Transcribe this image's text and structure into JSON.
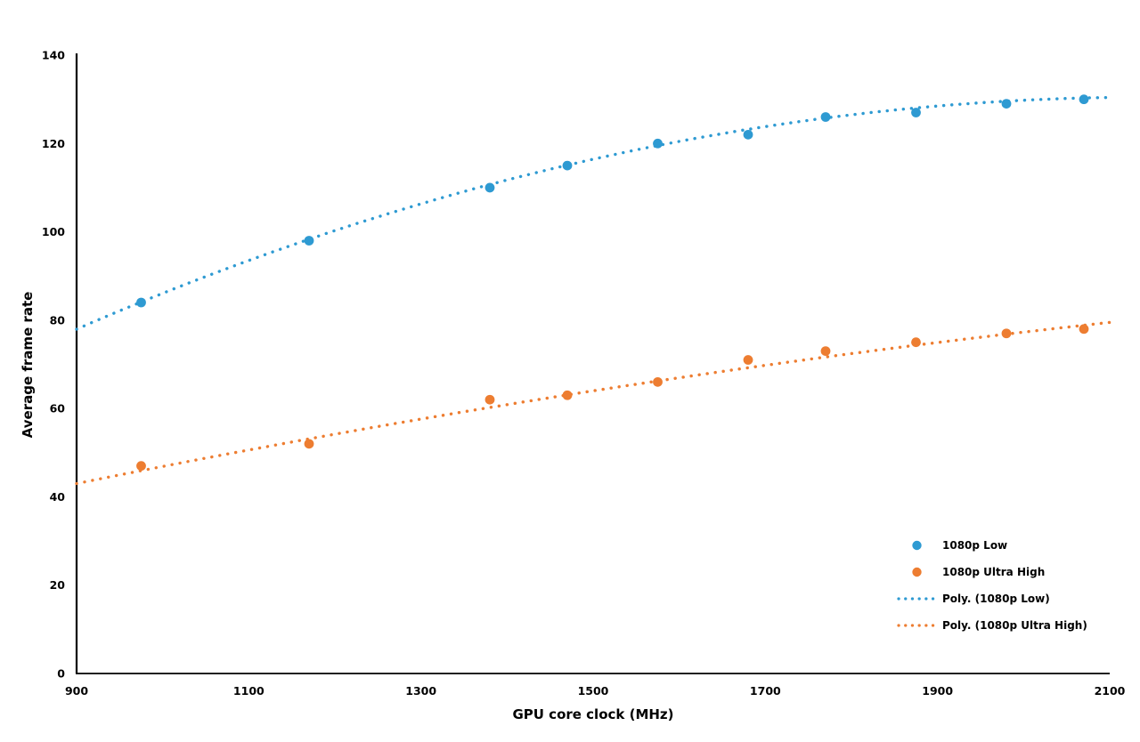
{
  "chart_data": {
    "type": "scatter",
    "title": "",
    "xlabel": "GPU core clock (MHz)",
    "ylabel": "Average frame rate",
    "xlim": [
      900,
      2100
    ],
    "ylim": [
      0,
      140
    ],
    "x_ticks": [
      900,
      1100,
      1300,
      1500,
      1700,
      1900,
      2100
    ],
    "y_ticks": [
      0,
      20,
      40,
      60,
      80,
      100,
      120,
      140
    ],
    "grid": false,
    "legend_position": "inside-bottom-right",
    "x": [
      975,
      1170,
      1380,
      1470,
      1575,
      1680,
      1770,
      1875,
      1980,
      2070
    ],
    "series": [
      {
        "name": "1080p Low",
        "color": "#2E9AD2",
        "values": [
          84,
          98,
          110,
          115,
          120,
          122,
          126,
          127,
          129,
          130
        ]
      },
      {
        "name": "1080p Ultra High",
        "color": "#ED7D31",
        "values": [
          47,
          52,
          62,
          63,
          66,
          71,
          73,
          75,
          77,
          78
        ]
      }
    ],
    "trendlines": [
      {
        "name": "Poly. (1080p Low)",
        "color": "#2E9AD2",
        "type": "polynomial",
        "coeffs": [
          -3.403e-05,
          0.1458,
          -25.69
        ],
        "x_range": [
          900,
          2100
        ]
      },
      {
        "name": "Poly. (1080p Ultra High)",
        "color": "#ED7D31",
        "type": "polynomial",
        "coeffs": [
          -7.64e-06,
          0.05333,
          1.19
        ],
        "x_range": [
          900,
          2100
        ]
      }
    ],
    "legend": [
      {
        "label": "1080p Low",
        "marker": "dot",
        "color": "#2E9AD2"
      },
      {
        "label": "1080p Ultra High",
        "marker": "dot",
        "color": "#ED7D31"
      },
      {
        "label": "Poly. (1080p Low)",
        "marker": "dotted-line",
        "color": "#2E9AD2"
      },
      {
        "label": "Poly. (1080p Ultra High)",
        "marker": "dotted-line",
        "color": "#ED7D31"
      }
    ]
  }
}
